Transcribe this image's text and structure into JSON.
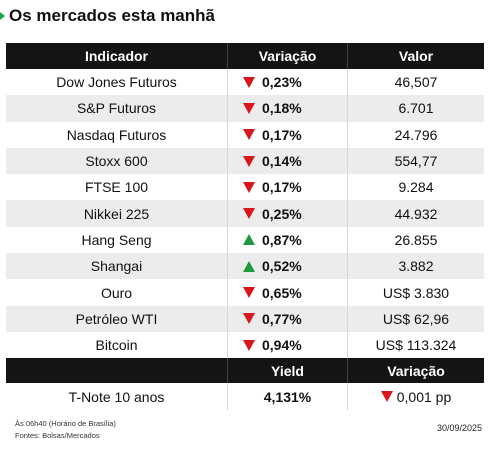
{
  "title": "Os mercados esta manhã",
  "table": {
    "headers": {
      "indicator": "Indicador",
      "change": "Variação",
      "value": "Valor"
    },
    "rows": [
      {
        "name": "Dow Jones Futuros",
        "direction": "down",
        "change": "0,23%",
        "value": "46,507"
      },
      {
        "name": "S&P Futuros",
        "direction": "down",
        "change": "0,18%",
        "value": "6.701"
      },
      {
        "name": "Nasdaq Futuros",
        "direction": "down",
        "change": "0,17%",
        "value": "24.796"
      },
      {
        "name": "Stoxx 600",
        "direction": "down",
        "change": "0,14%",
        "value": "554,77"
      },
      {
        "name": "FTSE 100",
        "direction": "down",
        "change": "0,17%",
        "value": "9.284"
      },
      {
        "name": "Nikkei 225",
        "direction": "down",
        "change": "0,25%",
        "value": "44.932"
      },
      {
        "name": "Hang Seng",
        "direction": "up",
        "change": "0,87%",
        "value": "26.855"
      },
      {
        "name": "Shangai",
        "direction": "up",
        "change": "0,52%",
        "value": "3.882"
      },
      {
        "name": "Ouro",
        "direction": "down",
        "change": "0,65%",
        "value": "US$ 3.830"
      },
      {
        "name": "Petróleo WTI",
        "direction": "down",
        "change": "0,77%",
        "value": "US$ 62,96"
      },
      {
        "name": "Bitcoin",
        "direction": "down",
        "change": "0,94%",
        "value": "US$ 113.324"
      }
    ]
  },
  "treasury": {
    "headers": {
      "yield": "Yield",
      "change": "Variação"
    },
    "name": "T-Note 10 anos",
    "yield": "4,131%",
    "direction": "down",
    "change": "0,001 pp"
  },
  "footer": {
    "time_note": "Às 06h40 (Horário de Brasília)",
    "sources": "Fontes: Bolsas/Mercados",
    "date": "30/09/2025"
  },
  "colors": {
    "down": "#d9161b",
    "up": "#1e9a3c",
    "header_bg": "#141414",
    "row_alt": "#ececec"
  }
}
